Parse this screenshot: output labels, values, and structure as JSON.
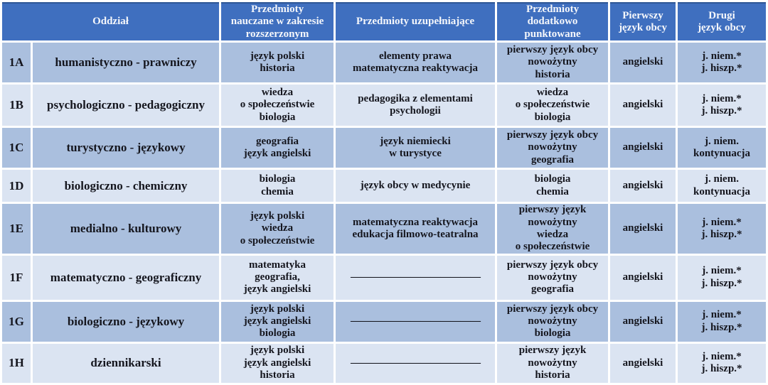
{
  "colors": {
    "header_bg": "#3f6fbf",
    "header_text": "#f5f7fb",
    "row_dark": "#aabfde",
    "row_light": "#dbe4f2",
    "text": "#15161e",
    "separator": "#ffffff"
  },
  "table": {
    "headers": {
      "oddzial": "Oddział",
      "extended": "Przedmioty\nnauczane w zakresie\nrozszerzonym",
      "supplementary": "Przedmioty uzupełniające",
      "scored": "Przedmioty\ndodatkowo\npunktowane",
      "first_language": "Pierwszy\njęzyk obcy",
      "second_language": "Drugi\njęzyk obcy"
    },
    "rows": [
      {
        "code": "1A",
        "name": "humanistyczno - prawniczy",
        "extended": "język polski\nhistoria",
        "supplementary": "elementy prawa\nmatematyczna reaktywacja",
        "scored": "pierwszy język obcy\nnowożytny\nhistoria",
        "first_language": "angielski",
        "second_language": "j. niem.*\nj. hiszp.*"
      },
      {
        "code": "1B",
        "name": "psychologiczno - pedagogiczny",
        "extended": "wiedza\no społeczeństwie\nbiologia",
        "supplementary": "pedagogika z elementami\npsychologii",
        "scored": "wiedza\no społeczeństwie\nbiologia",
        "first_language": "angielski",
        "second_language": "j. niem.*\nj. hiszp.*"
      },
      {
        "code": "1C",
        "name": "turystyczno - językowy",
        "extended": "geografia\njęzyk angielski",
        "supplementary": "język niemiecki\nw turystyce",
        "scored": "pierwszy język obcy\nnowożytny\ngeografia",
        "first_language": "angielski",
        "second_language": "j. niem.\nkontynuacja"
      },
      {
        "code": "1D",
        "name": "biologiczno - chemiczny",
        "extended": "biologia\nchemia",
        "supplementary": "język obcy w medycynie",
        "scored": "biologia\nchemia",
        "first_language": "angielski",
        "second_language": "j. niem.\nkontynuacja"
      },
      {
        "code": "1E",
        "name": "medialno - kulturowy",
        "extended": "język polski\nwiedza\no społeczeństwie",
        "supplementary": "matematyczna reaktywacja\nedukacja filmowo-teatralna",
        "scored": "pierwszy język\nnowożytny\nwiedza\no społeczeństwie",
        "first_language": "angielski",
        "second_language": "j. niem.*\nj. hiszp.*"
      },
      {
        "code": "1F",
        "name": "matematyczno - geograficzny",
        "extended": "matematyka\ngeografia,\njęzyk angielski",
        "supplementary": "—————————————",
        "scored": "pierwszy język obcy\nnowożytny\ngeografia",
        "first_language": "angielski",
        "second_language": "j. niem.*\nj. hiszp.*"
      },
      {
        "code": "1G",
        "name": "biologiczno - językowy",
        "extended": "język polski\njęzyk angielski\nbiologia",
        "supplementary": "—————————————",
        "scored": "pierwszy język obcy\nnowożytny\nbiologia",
        "first_language": "angielski",
        "second_language": "j. niem.*\nj. hiszp.*"
      },
      {
        "code": "1H",
        "name": "dziennikarski",
        "extended": "język polski\njęzyk angielski\nhistoria",
        "supplementary": "—————————————",
        "scored": "pierwszy język\nnowożytny\nhistoria",
        "first_language": "angielski",
        "second_language": "j. niem.*\nj. hiszp.*"
      }
    ]
  }
}
